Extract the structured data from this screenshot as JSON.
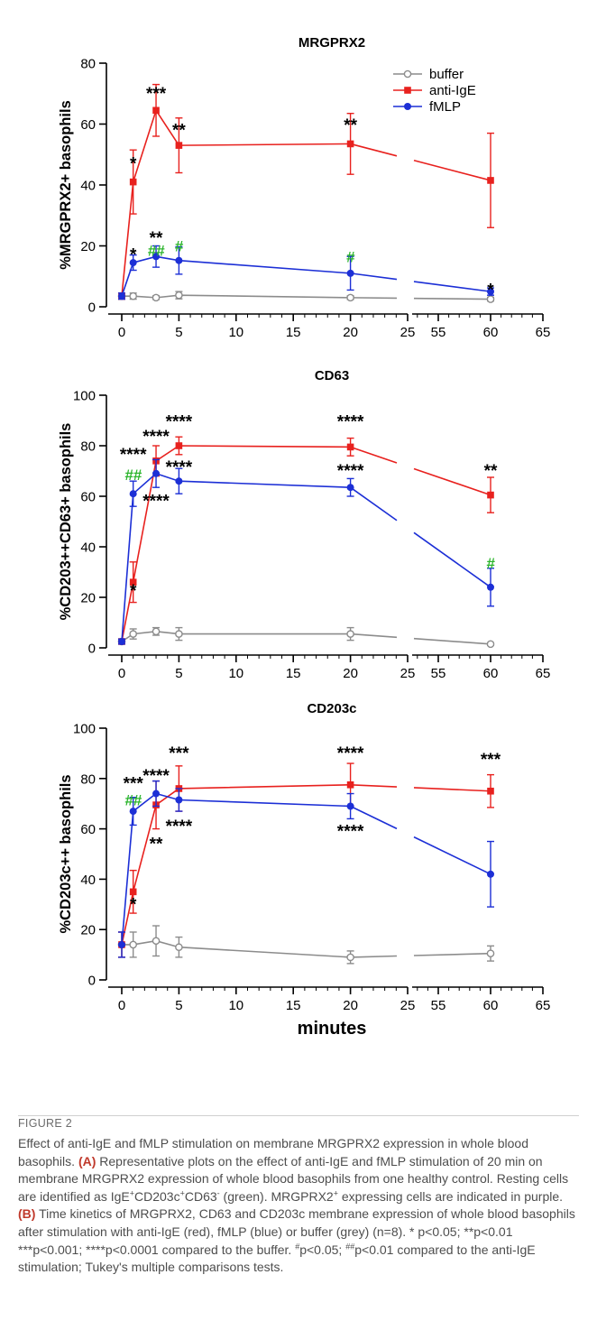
{
  "chart_data": [
    {
      "type": "line",
      "title": "MRGPRX2",
      "ylabel": "%MRGPRX2+ basophils",
      "xlabel": "",
      "ylim": [
        0,
        80
      ],
      "yticks": [
        "0",
        "20",
        "40",
        "60",
        "80"
      ],
      "xticks": [
        "0",
        "5",
        "10",
        "15",
        "20",
        "25",
        "55",
        "60",
        "65"
      ],
      "x": [
        0,
        1,
        3,
        5,
        20,
        60
      ],
      "legend": "top-right",
      "series": [
        {
          "name": "buffer",
          "color": "#8c8c8c",
          "marker": "open-circle",
          "values": [
            3.5,
            3.5,
            3.0,
            3.8,
            3.0,
            2.5
          ],
          "err": [
            1.0,
            1.0,
            0.6,
            1.2,
            0.6,
            0.6
          ]
        },
        {
          "name": "anti-IgE",
          "color": "#e8211e",
          "marker": "square",
          "values": [
            3.5,
            41,
            64.5,
            53,
            53.5,
            41.5
          ],
          "err": [
            1.0,
            10.5,
            8.5,
            9,
            10,
            15.5
          ]
        },
        {
          "name": "fMLP",
          "color": "#1c2fd6",
          "marker": "dot",
          "values": [
            3.5,
            14.5,
            16.5,
            15.2,
            11,
            5
          ],
          "err": [
            1.0,
            2.5,
            3.5,
            4.5,
            5.5,
            1.2
          ]
        }
      ],
      "annotations": [
        {
          "x": 1,
          "y": 47,
          "text": "*",
          "color": "black"
        },
        {
          "x": 3,
          "y": 70,
          "text": "***",
          "color": "black"
        },
        {
          "x": 5,
          "y": 58,
          "text": "**",
          "color": "black"
        },
        {
          "x": 20,
          "y": 59.5,
          "text": "**",
          "color": "black"
        },
        {
          "x": 1,
          "y": 17,
          "text": "*",
          "color": "black"
        },
        {
          "x": 3,
          "y": 22.5,
          "text": "**",
          "color": "black"
        },
        {
          "x": 3,
          "y": 18.5,
          "text": "##",
          "color": "green"
        },
        {
          "x": 5,
          "y": 20,
          "text": "#",
          "color": "green"
        },
        {
          "x": 20,
          "y": 16.5,
          "text": "#",
          "color": "green"
        },
        {
          "x": 60,
          "y": 5.5,
          "text": "*",
          "color": "black"
        }
      ]
    },
    {
      "type": "line",
      "title": "CD63",
      "ylabel": "%CD203++CD63+ basophils",
      "xlabel": "",
      "ylim": [
        0,
        100
      ],
      "yticks": [
        "0",
        "20",
        "40",
        "60",
        "80",
        "100"
      ],
      "xticks": [
        "0",
        "5",
        "10",
        "15",
        "20",
        "25",
        "55",
        "60",
        "65"
      ],
      "x": [
        0,
        1,
        3,
        5,
        20,
        60
      ],
      "series": [
        {
          "name": "buffer",
          "color": "#8c8c8c",
          "marker": "open-circle",
          "values": [
            2.5,
            5.5,
            6.5,
            5.5,
            5.5,
            1.5
          ],
          "err": [
            1.0,
            2.0,
            1.5,
            2.5,
            2.5,
            0.5
          ]
        },
        {
          "name": "anti-IgE",
          "color": "#e8211e",
          "marker": "square",
          "values": [
            2.5,
            26,
            74,
            80,
            79.5,
            60.5
          ],
          "err": [
            1.0,
            8,
            6,
            3.5,
            3.5,
            7
          ]
        },
        {
          "name": "fMLP",
          "color": "#1c2fd6",
          "marker": "dot",
          "values": [
            2.5,
            61,
            69,
            66,
            63.5,
            24
          ],
          "err": [
            1.0,
            5,
            5.5,
            5,
            3.5,
            7.5
          ]
        }
      ],
      "annotations": [
        {
          "x": 1,
          "y": 76.5,
          "text": "****",
          "color": "black"
        },
        {
          "x": 1,
          "y": 68.5,
          "text": "##",
          "color": "green"
        },
        {
          "x": 1,
          "y": 22.5,
          "text": "*",
          "color": "black"
        },
        {
          "x": 3,
          "y": 83.5,
          "text": "****",
          "color": "black"
        },
        {
          "x": 3,
          "y": 58,
          "text": "****",
          "color": "black"
        },
        {
          "x": 5,
          "y": 89.5,
          "text": "****",
          "color": "black"
        },
        {
          "x": 5,
          "y": 71.5,
          "text": "****",
          "color": "black"
        },
        {
          "x": 20,
          "y": 89.5,
          "text": "****",
          "color": "black"
        },
        {
          "x": 20,
          "y": 70,
          "text": "****",
          "color": "black"
        },
        {
          "x": 60,
          "y": 70,
          "text": "**",
          "color": "black"
        },
        {
          "x": 60,
          "y": 33.5,
          "text": "#",
          "color": "green"
        }
      ]
    },
    {
      "type": "line",
      "title": "CD203c",
      "ylabel": "%CD203c++ basophils",
      "xlabel": "minutes",
      "ylim": [
        0,
        100
      ],
      "yticks": [
        "0",
        "20",
        "40",
        "60",
        "80",
        "100"
      ],
      "xticks": [
        "0",
        "5",
        "10",
        "15",
        "20",
        "25",
        "55",
        "60",
        "65"
      ],
      "x": [
        0,
        1,
        3,
        5,
        20,
        60
      ],
      "series": [
        {
          "name": "buffer",
          "color": "#8c8c8c",
          "marker": "open-circle",
          "values": [
            14,
            14,
            15.5,
            13,
            9,
            10.5
          ],
          "err": [
            5,
            5,
            6,
            4,
            2.5,
            3
          ]
        },
        {
          "name": "anti-IgE",
          "color": "#e8211e",
          "marker": "square",
          "values": [
            14,
            35,
            69.5,
            76,
            77.5,
            75
          ],
          "err": [
            5,
            8.5,
            9.5,
            9,
            8.5,
            6.5
          ]
        },
        {
          "name": "fMLP",
          "color": "#1c2fd6",
          "marker": "dot",
          "values": [
            14,
            67,
            74,
            71.5,
            69,
            42
          ],
          "err": [
            5,
            5.5,
            5,
            4.5,
            5,
            13
          ]
        }
      ],
      "annotations": [
        {
          "x": 1,
          "y": 78,
          "text": "***",
          "color": "black"
        },
        {
          "x": 1,
          "y": 71.5,
          "text": "##",
          "color": "green"
        },
        {
          "x": 1,
          "y": 30,
          "text": "*",
          "color": "black"
        },
        {
          "x": 3,
          "y": 81,
          "text": "****",
          "color": "black"
        },
        {
          "x": 3,
          "y": 54,
          "text": "**",
          "color": "black"
        },
        {
          "x": 5,
          "y": 90,
          "text": "***",
          "color": "black"
        },
        {
          "x": 5,
          "y": 61,
          "text": "****",
          "color": "black"
        },
        {
          "x": 20,
          "y": 90,
          "text": "****",
          "color": "black"
        },
        {
          "x": 20,
          "y": 59,
          "text": "****",
          "color": "black"
        },
        {
          "x": 60,
          "y": 87.5,
          "text": "***",
          "color": "black"
        }
      ]
    }
  ],
  "caption": {
    "label": "FIGURE 2",
    "text_html": "Effect of anti-IgE and fMLP stimulation on membrane MRGPRX2 expression in whole blood basophils. <b>(A)</b> Representative plots on the effect of anti-IgE and fMLP stimulation of 20 min on membrane MRGPRX2 expression of whole blood basophils from one healthy control. Resting cells are identified as IgE<sup>+</sup>CD203c<sup>+</sup>CD63<sup>-</sup> (green). MRGPRX2<sup>+</sup> expressing cells are indicated in purple. <b>(B)</b> Time kinetics of MRGPRX2, CD63 and CD203c membrane expression of whole blood basophils after stimulation with anti-IgE (red), fMLP (blue) or buffer (grey) (n=8). * p&lt;0.05; **p&lt;0.01 ***p&lt;0.001; ****p&lt;0.0001 compared to the buffer. <sup>#</sup>p&lt;0.05; <sup>##</sup>p&lt;0.01 compared to the anti-IgE stimulation; Tukey's multiple comparisons tests."
  }
}
